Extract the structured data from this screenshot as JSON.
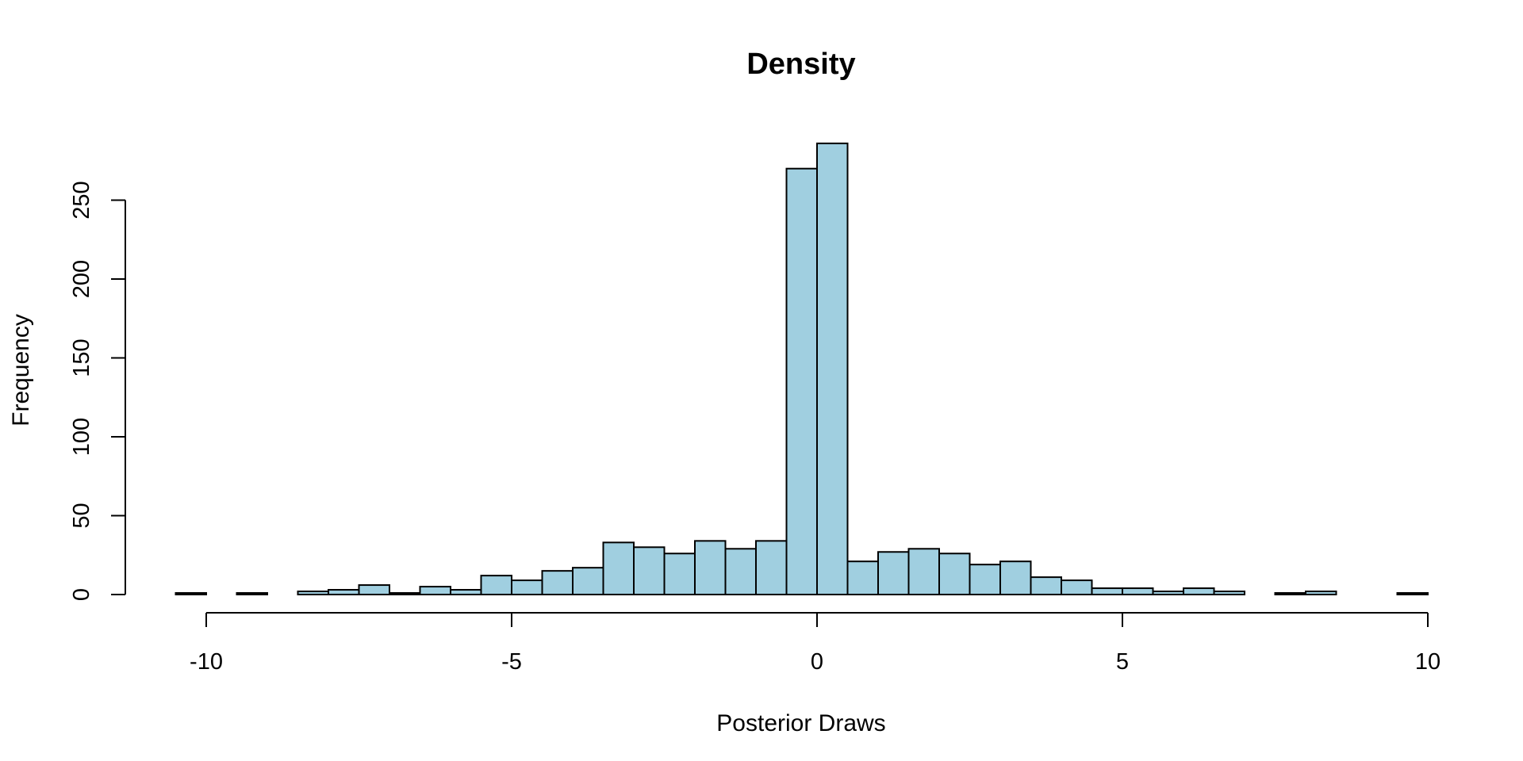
{
  "chart_data": {
    "type": "bar",
    "title": "Density",
    "xlabel": "Posterior Draws",
    "ylabel": "Frequency",
    "bar_color": "#A0CFE0",
    "bin_width": 0.5,
    "xlim": [
      -10,
      10
    ],
    "ylim": [
      0,
      285
    ],
    "x_ticks": [
      -10,
      -5,
      0,
      5,
      10
    ],
    "x_tick_labels": [
      "-10",
      "-5",
      "0",
      "5",
      "10"
    ],
    "y_ticks": [
      0,
      50,
      100,
      150,
      200,
      250
    ],
    "y_tick_labels": [
      "0",
      "50",
      "100",
      "150",
      "200",
      "250"
    ],
    "bins": [
      {
        "start": -10.5,
        "end": -10.0,
        "count": 1
      },
      {
        "start": -10.0,
        "end": -9.5,
        "count": 0
      },
      {
        "start": -9.5,
        "end": -9.0,
        "count": 1
      },
      {
        "start": -9.0,
        "end": -8.5,
        "count": 0
      },
      {
        "start": -8.5,
        "end": -8.0,
        "count": 2
      },
      {
        "start": -8.0,
        "end": -7.5,
        "count": 3
      },
      {
        "start": -7.5,
        "end": -7.0,
        "count": 6
      },
      {
        "start": -7.0,
        "end": -6.5,
        "count": 1
      },
      {
        "start": -6.5,
        "end": -6.0,
        "count": 5
      },
      {
        "start": -6.0,
        "end": -5.5,
        "count": 3
      },
      {
        "start": -5.5,
        "end": -5.0,
        "count": 12
      },
      {
        "start": -5.0,
        "end": -4.5,
        "count": 9
      },
      {
        "start": -4.5,
        "end": -4.0,
        "count": 15
      },
      {
        "start": -4.0,
        "end": -3.5,
        "count": 17
      },
      {
        "start": -3.5,
        "end": -3.0,
        "count": 33
      },
      {
        "start": -3.0,
        "end": -2.5,
        "count": 30
      },
      {
        "start": -2.5,
        "end": -2.0,
        "count": 26
      },
      {
        "start": -2.0,
        "end": -1.5,
        "count": 34
      },
      {
        "start": -1.5,
        "end": -1.0,
        "count": 29
      },
      {
        "start": -1.0,
        "end": -0.5,
        "count": 34
      },
      {
        "start": -0.5,
        "end": 0.0,
        "count": 270
      },
      {
        "start": 0.0,
        "end": 0.5,
        "count": 286
      },
      {
        "start": 0.5,
        "end": 1.0,
        "count": 21
      },
      {
        "start": 1.0,
        "end": 1.5,
        "count": 27
      },
      {
        "start": 1.5,
        "end": 2.0,
        "count": 29
      },
      {
        "start": 2.0,
        "end": 2.5,
        "count": 26
      },
      {
        "start": 2.5,
        "end": 3.0,
        "count": 19
      },
      {
        "start": 3.0,
        "end": 3.5,
        "count": 21
      },
      {
        "start": 3.5,
        "end": 4.0,
        "count": 11
      },
      {
        "start": 4.0,
        "end": 4.5,
        "count": 9
      },
      {
        "start": 4.5,
        "end": 5.0,
        "count": 4
      },
      {
        "start": 5.0,
        "end": 5.5,
        "count": 4
      },
      {
        "start": 5.5,
        "end": 6.0,
        "count": 2
      },
      {
        "start": 6.0,
        "end": 6.5,
        "count": 4
      },
      {
        "start": 6.5,
        "end": 7.0,
        "count": 2
      },
      {
        "start": 7.0,
        "end": 7.5,
        "count": 0
      },
      {
        "start": 7.5,
        "end": 8.0,
        "count": 1
      },
      {
        "start": 8.0,
        "end": 8.5,
        "count": 2
      },
      {
        "start": 8.5,
        "end": 9.0,
        "count": 0
      },
      {
        "start": 9.0,
        "end": 9.5,
        "count": 0
      },
      {
        "start": 9.5,
        "end": 10.0,
        "count": 1
      }
    ]
  }
}
